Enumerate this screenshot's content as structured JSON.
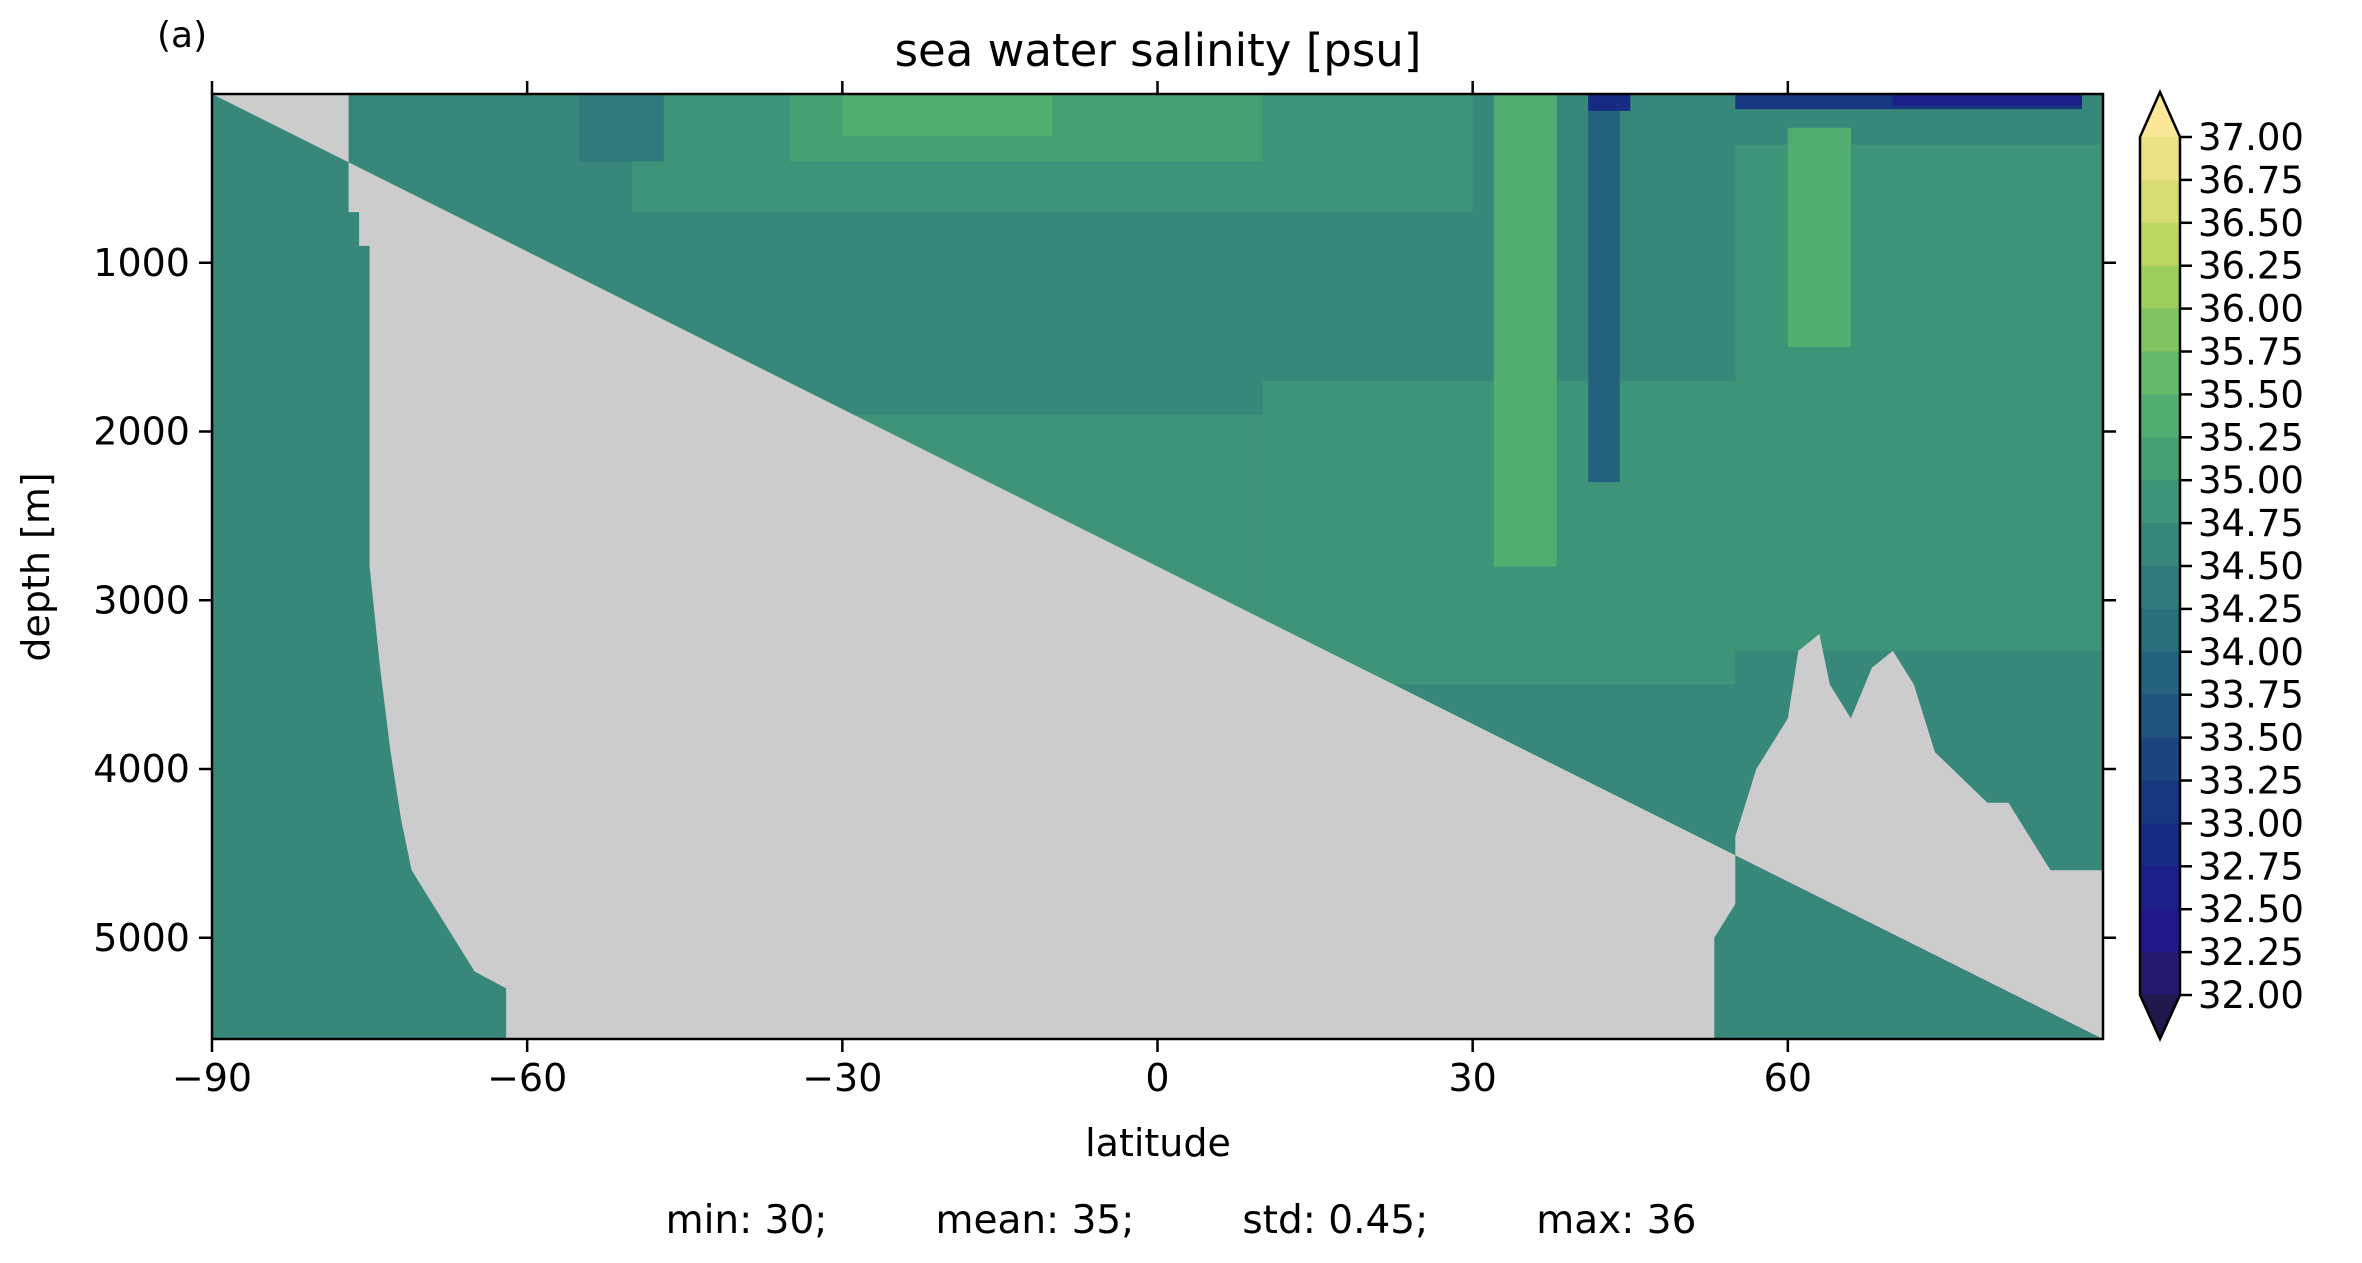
{
  "panel_label": "(a)",
  "stats": {
    "min": "min: 30;",
    "mean": "mean: 35;",
    "std": "std: 0.45;",
    "max": "max: 36"
  },
  "chart_data": {
    "type": "heatmap",
    "title": "sea water salinity [psu]",
    "xlabel": "latitude",
    "ylabel": "depth [m]",
    "xlim": [
      -90,
      90
    ],
    "ylim": [
      5600,
      0
    ],
    "y_inverted": true,
    "x_ticks": [
      -90,
      -60,
      -30,
      0,
      30,
      60
    ],
    "x_tick_labels": [
      "−90",
      "−60",
      "−30",
      "0",
      "30",
      "60"
    ],
    "y_ticks": [
      1000,
      2000,
      3000,
      4000,
      5000
    ],
    "y_tick_labels": [
      "1000",
      "2000",
      "3000",
      "4000",
      "5000"
    ],
    "land_color": "#cccccc",
    "colorbar": {
      "label_values": [
        37.0,
        36.75,
        36.5,
        36.25,
        36.0,
        35.75,
        35.5,
        35.25,
        35.0,
        34.75,
        34.5,
        34.25,
        34.0,
        33.75,
        33.5,
        33.25,
        33.0,
        32.75,
        32.5,
        32.25,
        32.0
      ],
      "labels": [
        "37.00",
        "36.75",
        "36.50",
        "36.25",
        "36.00",
        "35.75",
        "35.50",
        "35.25",
        "35.00",
        "34.75",
        "34.50",
        "34.25",
        "34.00",
        "33.75",
        "33.50",
        "33.25",
        "33.00",
        "32.75",
        "32.50",
        "32.25",
        "32.00"
      ],
      "colors": [
        "#ebe285",
        "#d7dd73",
        "#bcd660",
        "#9dcd5b",
        "#7fc461",
        "#65b96a",
        "#52ad71",
        "#47a074",
        "#3e9479",
        "#37877a",
        "#307a7b",
        "#2a6e7c",
        "#24617d",
        "#1f537e",
        "#1b457f",
        "#183781",
        "#172b85",
        "#1c1f88",
        "#21178a",
        "#241a6b"
      ],
      "extend_max_color": "#fbe797",
      "extend_min_color": "#1f1a4b",
      "extend": "both"
    },
    "land_bottom_depth_m": [
      [
        -90,
        0
      ],
      [
        -77,
        0
      ],
      [
        -77,
        700
      ],
      [
        -76,
        700
      ],
      [
        -76,
        900
      ],
      [
        -75,
        900
      ],
      [
        -75,
        2800
      ],
      [
        -74,
        3400
      ],
      [
        -73,
        3900
      ],
      [
        -72,
        4300
      ],
      [
        -71,
        4600
      ],
      [
        -69,
        4800
      ],
      [
        -67,
        5000
      ],
      [
        -65,
        5200
      ],
      [
        -62,
        5300
      ],
      [
        -62,
        5600
      ],
      [
        53,
        5600
      ],
      [
        53,
        5000
      ],
      [
        55,
        4800
      ],
      [
        55,
        4400
      ],
      [
        57,
        4000
      ],
      [
        60,
        3700
      ],
      [
        61,
        3300
      ],
      [
        63,
        3200
      ],
      [
        64,
        3500
      ],
      [
        65,
        3600
      ],
      [
        66,
        3700
      ],
      [
        68,
        3400
      ],
      [
        70,
        3300
      ],
      [
        72,
        3500
      ],
      [
        73,
        3700
      ],
      [
        74,
        3900
      ],
      [
        79,
        4200
      ],
      [
        81,
        4200
      ],
      [
        83,
        4400
      ],
      [
        85,
        4600
      ],
      [
        90,
        4600
      ],
      [
        90,
        5600
      ]
    ],
    "salinity_regions": [
      {
        "value": 34.6,
        "lat": [
          -90,
          90
        ],
        "depth": [
          0,
          5600
        ]
      },
      {
        "value": 34.9,
        "lat": [
          -48,
          10
        ],
        "depth": [
          1900,
          3600
        ]
      },
      {
        "value": 34.9,
        "lat": [
          10,
          55
        ],
        "depth": [
          1700,
          3500
        ]
      },
      {
        "value": 34.9,
        "lat": [
          55,
          90
        ],
        "depth": [
          300,
          3300
        ]
      },
      {
        "value": 34.9,
        "lat": [
          -25,
          -8
        ],
        "depth": [
          4500,
          5600
        ]
      },
      {
        "value": 34.9,
        "lat": [
          22,
          30
        ],
        "depth": [
          4300,
          5600
        ]
      },
      {
        "value": 34.9,
        "lat": [
          -50,
          30
        ],
        "depth": [
          0,
          700
        ]
      },
      {
        "value": 35.1,
        "lat": [
          -35,
          10
        ],
        "depth": [
          0,
          400
        ]
      },
      {
        "value": 35.4,
        "lat": [
          -30,
          -10
        ],
        "depth": [
          0,
          250
        ]
      },
      {
        "value": 35.3,
        "lat": [
          32,
          38
        ],
        "depth": [
          0,
          2800
        ]
      },
      {
        "value": 35.5,
        "lat": [
          33,
          36
        ],
        "depth": [
          0,
          500
        ]
      },
      {
        "value": 35.3,
        "lat": [
          60,
          66
        ],
        "depth": [
          200,
          1500
        ]
      },
      {
        "value": 34.4,
        "lat": [
          -55,
          -47
        ],
        "depth": [
          0,
          400
        ]
      },
      {
        "value": 33.9,
        "lat": [
          41,
          44
        ],
        "depth": [
          0,
          2300
        ]
      },
      {
        "value": 32.8,
        "lat": [
          41,
          45
        ],
        "depth": [
          0,
          100
        ]
      },
      {
        "value": 33.2,
        "lat": [
          55,
          88
        ],
        "depth": [
          0,
          90
        ]
      },
      {
        "value": 32.6,
        "lat": [
          70,
          88
        ],
        "depth": [
          0,
          70
        ]
      }
    ]
  }
}
